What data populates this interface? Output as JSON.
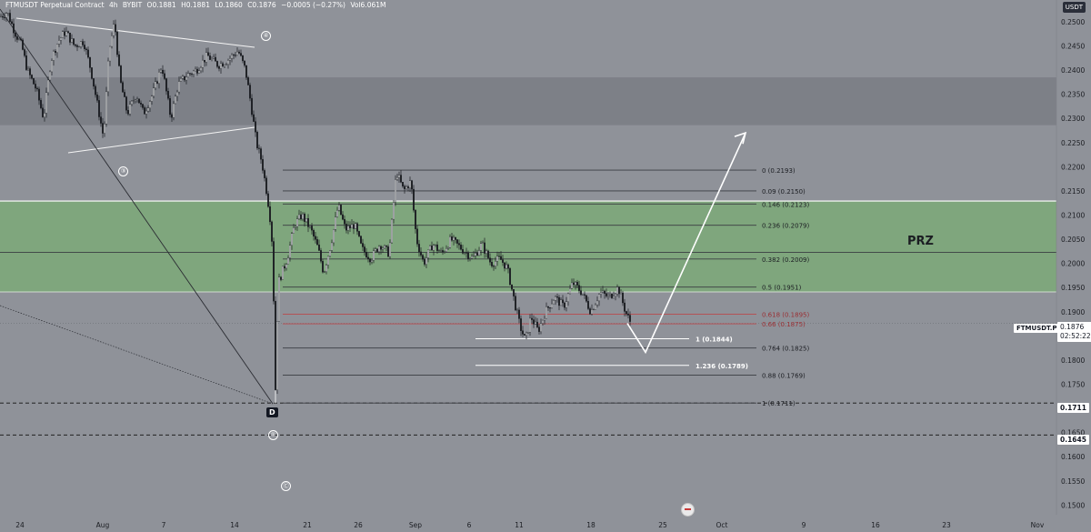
{
  "header": {
    "symbol": "FTMUSDT Perpetual Contract",
    "timeframe": "4h",
    "exchange": "BYBIT",
    "open": "O0.1881",
    "high": "H0.1881",
    "low": "L0.1860",
    "close": "C0.1876",
    "change": "−0.0005 (−0.27%)",
    "volume": "Vol6.061M"
  },
  "currency_badge": "USDT",
  "prz_label": "PRZ",
  "ticker_tag": "FTMUSDT.P",
  "last_price": "0.1876",
  "countdown": "02:52:22",
  "level_tags": [
    "0.1711",
    "0.1645"
  ],
  "d_label": "D",
  "wave_labels": [
    "④",
    "③",
    "⑤",
    "Ⓒ"
  ],
  "colors": {
    "background": "#8f9299",
    "prz_zone": "#7fa67d",
    "resistance_zone": "#7d8087",
    "candle": "#1b1d22",
    "fib_line": "#3a3c42",
    "fib_red": "#b8484c",
    "white": "#ffffff"
  },
  "chart_data": {
    "type": "candlestick",
    "x_tick_labels": [
      "24",
      "Aug",
      "7",
      "14",
      "21",
      "26",
      "Sep",
      "6",
      "11",
      "18",
      "25",
      "Oct",
      "9",
      "16",
      "23",
      "Nov"
    ],
    "y_tick_labels": [
      "0.2500",
      "0.2450",
      "0.2400",
      "0.2350",
      "0.2300",
      "0.2250",
      "0.2200",
      "0.2150",
      "0.2100",
      "0.2050",
      "0.2000",
      "0.1950",
      "0.1900",
      "0.1850",
      "0.1800",
      "0.1750",
      "0.1700",
      "0.1650",
      "0.1600",
      "0.1550",
      "0.1500"
    ],
    "ylim": [
      0.148,
      0.2545
    ],
    "last_price": 0.1876,
    "price_path": [
      [
        0,
        0.251
      ],
      [
        8,
        0.252
      ],
      [
        16,
        0.248
      ],
      [
        24,
        0.245
      ],
      [
        30,
        0.24
      ],
      [
        40,
        0.236
      ],
      [
        48,
        0.23
      ],
      [
        56,
        0.242
      ],
      [
        64,
        0.246
      ],
      [
        72,
        0.248
      ],
      [
        82,
        0.245
      ],
      [
        92,
        0.246
      ],
      [
        100,
        0.24
      ],
      [
        108,
        0.232
      ],
      [
        114,
        0.226
      ],
      [
        120,
        0.244
      ],
      [
        126,
        0.25
      ],
      [
        132,
        0.238
      ],
      [
        140,
        0.231
      ],
      [
        150,
        0.235
      ],
      [
        158,
        0.231
      ],
      [
        168,
        0.235
      ],
      [
        178,
        0.241
      ],
      [
        188,
        0.23
      ],
      [
        196,
        0.237
      ],
      [
        206,
        0.239
      ],
      [
        216,
        0.24
      ],
      [
        228,
        0.243
      ],
      [
        240,
        0.241
      ],
      [
        250,
        0.242
      ],
      [
        262,
        0.244
      ],
      [
        270,
        0.24
      ],
      [
        276,
        0.233
      ],
      [
        282,
        0.225
      ],
      [
        288,
        0.221
      ],
      [
        294,
        0.214
      ],
      [
        298,
        0.208
      ],
      [
        300,
        0.202
      ],
      [
        303,
        0.174
      ],
      [
        306,
        0.196
      ],
      [
        310,
        0.198
      ],
      [
        316,
        0.201
      ],
      [
        324,
        0.208
      ],
      [
        332,
        0.21
      ],
      [
        342,
        0.207
      ],
      [
        350,
        0.203
      ],
      [
        356,
        0.198
      ],
      [
        364,
        0.204
      ],
      [
        372,
        0.212
      ],
      [
        380,
        0.207
      ],
      [
        390,
        0.208
      ],
      [
        398,
        0.203
      ],
      [
        408,
        0.201
      ],
      [
        418,
        0.204
      ],
      [
        428,
        0.202
      ],
      [
        436,
        0.219
      ],
      [
        444,
        0.215
      ],
      [
        452,
        0.217
      ],
      [
        458,
        0.205
      ],
      [
        466,
        0.2
      ],
      [
        476,
        0.204
      ],
      [
        486,
        0.202
      ],
      [
        496,
        0.205
      ],
      [
        508,
        0.203
      ],
      [
        520,
        0.201
      ],
      [
        530,
        0.204
      ],
      [
        540,
        0.2
      ],
      [
        550,
        0.201
      ],
      [
        558,
        0.199
      ],
      [
        566,
        0.192
      ],
      [
        572,
        0.187
      ],
      [
        578,
        0.184
      ],
      [
        584,
        0.189
      ],
      [
        592,
        0.186
      ],
      [
        600,
        0.19
      ],
      [
        610,
        0.193
      ],
      [
        620,
        0.191
      ],
      [
        630,
        0.196
      ],
      [
        640,
        0.194
      ],
      [
        650,
        0.19
      ],
      [
        660,
        0.194
      ],
      [
        670,
        0.193
      ],
      [
        680,
        0.195
      ],
      [
        688,
        0.19
      ],
      [
        694,
        0.1876
      ]
    ],
    "fib_levels": [
      {
        "label": "0 (0.2193)",
        "value": 0.2193,
        "color": "dark"
      },
      {
        "label": "0.09 (0.2150)",
        "value": 0.215,
        "color": "dark"
      },
      {
        "label": "0.146 (0.2123)",
        "value": 0.2123,
        "color": "dark"
      },
      {
        "label": "0.236 (0.2079)",
        "value": 0.2079,
        "color": "dark"
      },
      {
        "label": "0.382 (0.2009)",
        "value": 0.2009,
        "color": "dark"
      },
      {
        "label": "0.5 (0.1951)",
        "value": 0.1951,
        "color": "dark"
      },
      {
        "label": "0.618 (0.1895)",
        "value": 0.1895,
        "color": "red"
      },
      {
        "label": "0.66 (0.1875)",
        "value": 0.1875,
        "color": "red"
      },
      {
        "label": "0.764 (0.1825)",
        "value": 0.1825,
        "color": "dark"
      },
      {
        "label": "0.88 (0.1769)",
        "value": 0.1769,
        "color": "dark"
      },
      {
        "label": "1 (0.1711)",
        "value": 0.1711,
        "color": "dark"
      }
    ],
    "projection_levels": [
      {
        "label": "1 (0.1844)",
        "value": 0.1844
      },
      {
        "label": "1.236 (0.1789)",
        "value": 0.1789
      }
    ],
    "prz_zone": [
      0.1941,
      0.2129
    ],
    "upper_zone": [
      0.2286,
      0.2385
    ],
    "white_level": 0.2129,
    "dashed_levels": [
      0.1711,
      0.1645
    ],
    "projection_path": [
      [
        690,
        0.1876
      ],
      [
        710,
        0.1816
      ],
      [
        820,
        0.227
      ]
    ],
    "grid": false,
    "legend": "none"
  }
}
